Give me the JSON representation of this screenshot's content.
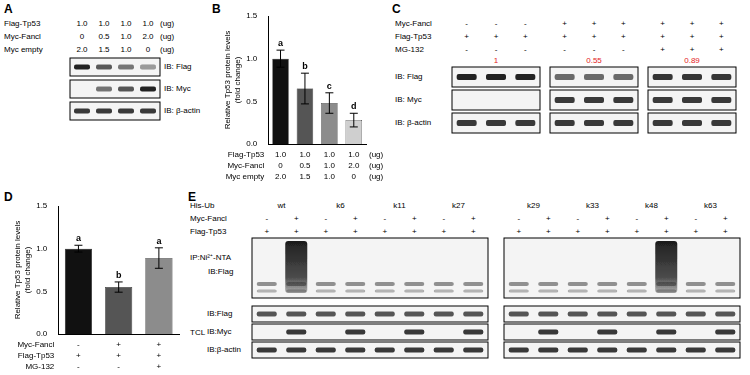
{
  "chart_data": [
    {
      "panel": "B",
      "type": "bar",
      "y_label": "Relative Tp53 protein levels\n(fold change)",
      "categories": [
        null,
        null,
        null,
        null
      ],
      "values": [
        1.0,
        0.65,
        0.48,
        0.28
      ],
      "errors": [
        0.1,
        0.18,
        0.12,
        0.08
      ],
      "annotations": [
        "a",
        "b",
        "c",
        "d"
      ],
      "colors": [
        "#111111",
        "#555555",
        "#8c8c8c",
        "#cfcfcf"
      ],
      "ylim": [
        0,
        1.5
      ],
      "yticks": [
        {
          "value": 0,
          "label": "0.0"
        },
        0.5,
        {
          "value": 1,
          "label": "1.0"
        },
        1.5
      ],
      "grid": false,
      "tick_labels": "y",
      "table": {
        "rows": [
          {
            "label": "Flag-Tp53",
            "values": [
              "1.0",
              "1.0",
              "1.0",
              "1.0"
            ],
            "unit": "(ug)"
          },
          {
            "label": "Myc-Fancl",
            "values": [
              "0",
              "0.5",
              "1.0",
              "2.0"
            ],
            "unit": "(ug)"
          },
          {
            "label": "Myc empty",
            "values": [
              "2.0",
              "1.5",
              "1.0",
              "0"
            ],
            "unit": "(ug)"
          }
        ]
      }
    },
    {
      "panel": "D",
      "type": "bar",
      "y_label": "Relative Tp53 protein levels\n(fold change)",
      "categories": [
        null,
        null,
        null
      ],
      "values": [
        1.0,
        0.55,
        0.89
      ],
      "errors": [
        0.04,
        0.06,
        0.12
      ],
      "annotations": [
        "a",
        "b",
        "a"
      ],
      "colors": [
        "#111111",
        "#555555",
        "#8c8c8c"
      ],
      "ylim": [
        0,
        1.5
      ],
      "yticks": [
        {
          "value": 0,
          "label": "0.0"
        },
        0.5,
        {
          "value": 1,
          "label": "1.0"
        },
        1.5
      ],
      "grid": false,
      "tick_labels": "y",
      "table": {
        "rows": [
          {
            "label": "Myc-Fancl",
            "values": [
              "-",
              "+",
              "+"
            ]
          },
          {
            "label": "Flag-Tp53",
            "values": [
              "+",
              "+",
              "+"
            ]
          },
          {
            "label": "MG-132",
            "values": [
              "-",
              "-",
              "+"
            ]
          }
        ]
      }
    }
  ],
  "blots": {
    "A": {
      "panel": "A",
      "rows": [
        {
          "label": "Flag-Tp53",
          "values": [
            "1.0",
            "1.0",
            "1.0",
            "1.0"
          ],
          "unit": "(ug)"
        },
        {
          "label": "Myc-Fancl",
          "values": [
            "0",
            "0.5",
            "1.0",
            "2.0"
          ],
          "unit": "(ug)"
        },
        {
          "label": "Myc empty",
          "values": [
            "2.0",
            "1.5",
            "1.0",
            "0"
          ],
          "unit": "(ug)"
        }
      ],
      "blots": [
        "IB: Flag",
        "IB: Myc",
        "IB: β-actin"
      ]
    },
    "C": {
      "panel": "C",
      "rows": [
        {
          "label": "Myc-Fancl",
          "values": [
            "-",
            "-",
            "-",
            "+",
            "+",
            "+",
            "+",
            "+",
            "+"
          ]
        },
        {
          "label": "Flag-Tp53",
          "values": [
            "+",
            "+",
            "+",
            "+",
            "+",
            "+",
            "+",
            "+",
            "+"
          ]
        },
        {
          "label": "MG-132",
          "values": [
            "-",
            "-",
            "-",
            "-",
            "-",
            "-",
            "+",
            "+",
            "+"
          ]
        }
      ],
      "group_labels": {
        "values": [
          "1",
          "0.55",
          "0.89"
        ],
        "color": "#e31a1c"
      },
      "blots": [
        "IB: Flag",
        "IB: Myc",
        "IB: β-actin"
      ]
    },
    "E": {
      "panel": "E",
      "rows": [
        {
          "label": "His-Ub",
          "values": [
            "wt",
            "k6",
            "k11",
            "k27",
            "k29",
            "k33",
            "k48",
            "k63"
          ]
        },
        {
          "label": "Myc-Fancl",
          "values": [
            "-",
            "+",
            "-",
            "+",
            "-",
            "+",
            "-",
            "+",
            "-",
            "+",
            "-",
            "+",
            "-",
            "+",
            "-",
            "+"
          ]
        },
        {
          "label": "Flag-Tp53",
          "values": [
            "+",
            "+",
            "+",
            "+",
            "+",
            "+",
            "+",
            "+",
            "+",
            "+",
            "+",
            "+",
            "+",
            "+",
            "+",
            "+"
          ]
        }
      ],
      "ip": {
        "label": "IP:Ni²⁺-NTA",
        "blots": [
          "IB:Flag"
        ]
      },
      "tcl": {
        "label": "TCL",
        "blots": [
          "IB:Flag",
          "IB:Myc",
          "IB:β-actin"
        ]
      }
    }
  }
}
